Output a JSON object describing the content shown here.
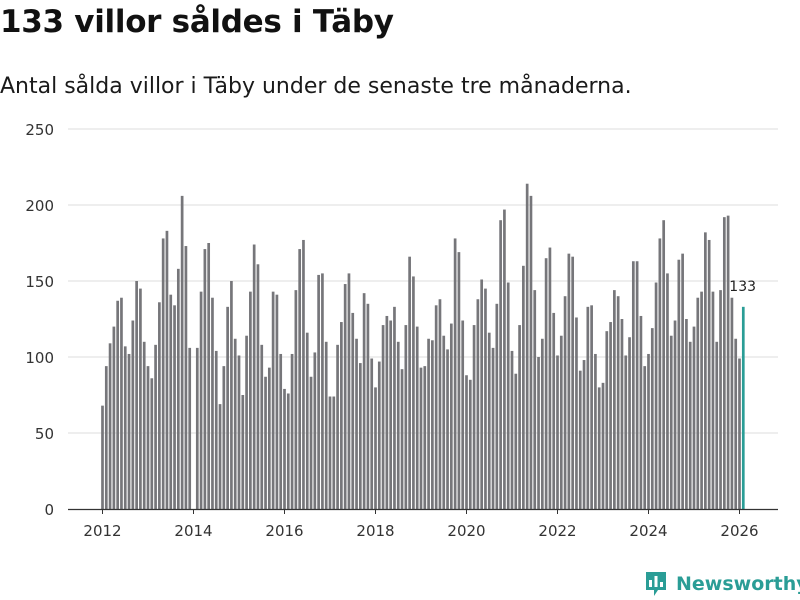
{
  "header": {
    "title": "133 villor såldes i Täby",
    "subtitle": "Antal sålda villor i Täby under de senaste tre månaderna."
  },
  "brand": {
    "name": "Newsworthy",
    "color": "#2a9d96"
  },
  "chart_data": {
    "type": "bar",
    "title": "133 villor såldes i Täby",
    "xlabel": "",
    "ylabel": "",
    "ylim": [
      0,
      250
    ],
    "yticks": [
      0,
      50,
      100,
      150,
      200,
      250
    ],
    "xticks": [
      "2012",
      "2014",
      "2016",
      "2018",
      "2020",
      "2022",
      "2024",
      "2026"
    ],
    "start": {
      "year": 2012,
      "month": 1
    },
    "bar_color": "#76767a",
    "highlight_color": "#2a9d96",
    "highlight_label": "133",
    "grid": true,
    "values": [
      68,
      94,
      109,
      120,
      137,
      139,
      107,
      102,
      124,
      150,
      145,
      110,
      94,
      86,
      108,
      136,
      178,
      183,
      141,
      134,
      158,
      206,
      173,
      106,
      0,
      106,
      143,
      171,
      175,
      139,
      104,
      69,
      94,
      133,
      150,
      112,
      101,
      75,
      114,
      143,
      174,
      161,
      108,
      87,
      93,
      143,
      141,
      102,
      79,
      76,
      102,
      144,
      171,
      177,
      116,
      87,
      103,
      154,
      155,
      110,
      74,
      74,
      108,
      123,
      148,
      155,
      129,
      112,
      96,
      142,
      135,
      99,
      80,
      97,
      121,
      127,
      124,
      133,
      110,
      92,
      121,
      166,
      153,
      120,
      93,
      94,
      112,
      111,
      134,
      138,
      114,
      105,
      122,
      178,
      169,
      124,
      88,
      85,
      121,
      138,
      151,
      145,
      116,
      106,
      135,
      190,
      197,
      149,
      104,
      89,
      121,
      160,
      214,
      206,
      144,
      100,
      112,
      165,
      172,
      129,
      101,
      114,
      140,
      168,
      166,
      126,
      91,
      98,
      133,
      134,
      102,
      80,
      83,
      117,
      123,
      144,
      140,
      125,
      101,
      113,
      163,
      163,
      127,
      94,
      102,
      119,
      149,
      178,
      190,
      155,
      114,
      124,
      164,
      168,
      125,
      110,
      120,
      139,
      143,
      182,
      177,
      143,
      110,
      144,
      192,
      193,
      139,
      112,
      99,
      133
    ]
  }
}
